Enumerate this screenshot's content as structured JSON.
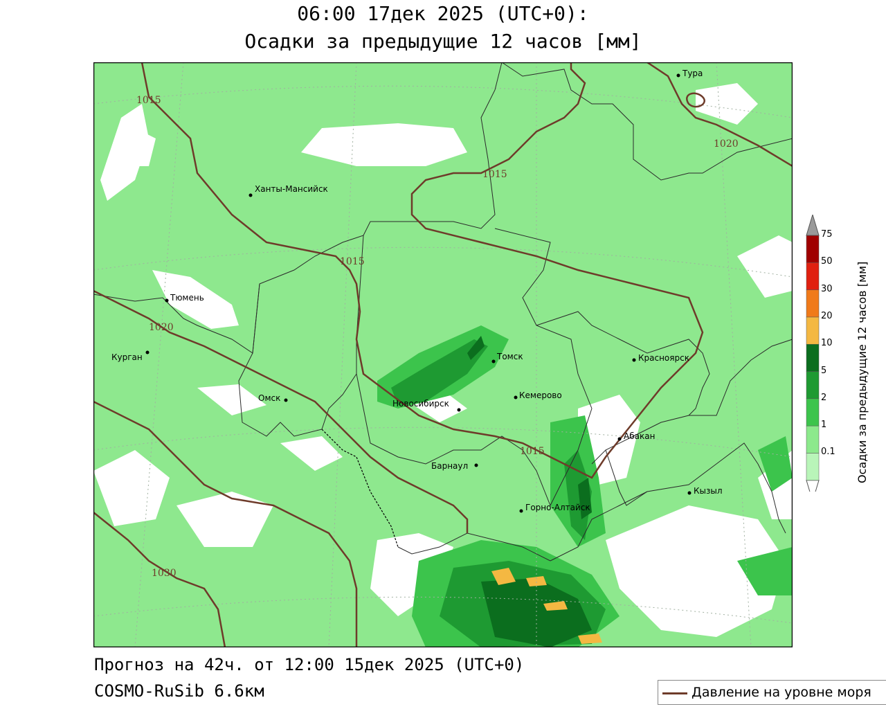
{
  "header": {
    "title_line1": "06:00 17дек 2025 (UTC+0):",
    "title_line2": "Осадки за предыдущие 12 часов [мм]"
  },
  "footer": {
    "forecast": "Прогноз на 42ч. от 12:00 15дек 2025 (UTC+0)",
    "model": "COSMO-RuSib 6.6км"
  },
  "legend": {
    "line_label": "Давление на уровне моря",
    "line_color": "#6e3b2a"
  },
  "colorbar": {
    "title": "Осадки за предыдущие 12 часов [мм]",
    "levels": [
      "0.1",
      "1",
      "2",
      "5",
      "10",
      "20",
      "30",
      "50",
      "75"
    ],
    "colors": [
      "#b9f5b9",
      "#8ce98c",
      "#3cc44c",
      "#1e9a32",
      "#0b6e1e",
      "#f4b842",
      "#f07a1a",
      "#e02010",
      "#a00000",
      "#9a9a9a"
    ]
  },
  "map": {
    "cities": [
      {
        "name": "Тура"
      },
      {
        "name": "Ханты-Мансийск"
      },
      {
        "name": "Тюмень"
      },
      {
        "name": "Курган"
      },
      {
        "name": "Омск"
      },
      {
        "name": "Новосибирск"
      },
      {
        "name": "Томск"
      },
      {
        "name": "Кемерово"
      },
      {
        "name": "Красноярск"
      },
      {
        "name": "Абакан"
      },
      {
        "name": "Барнаул"
      },
      {
        "name": "Горно-Алтайск"
      },
      {
        "name": "Кызыл"
      }
    ],
    "isobars": [
      "1015",
      "1015",
      "1015",
      "1015",
      "1020",
      "1020",
      "1030"
    ]
  }
}
